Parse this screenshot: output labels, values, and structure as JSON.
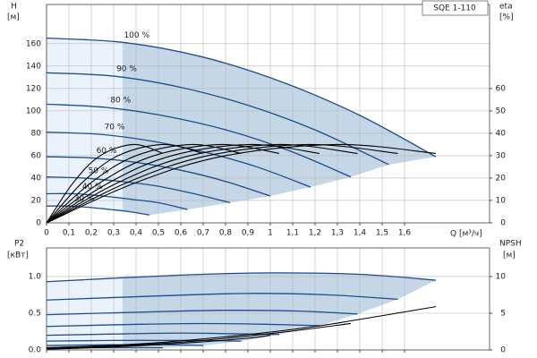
{
  "chart_data": [
    {
      "type": "line",
      "title": "SQE 1-110",
      "x_label": "Q [м³/ч]",
      "y_label": "H",
      "y_unit": "[м]",
      "y2_label": "eta",
      "y2_unit": "[%]",
      "xlim": [
        0,
        1.98
      ],
      "xticks": [
        0,
        {
          "value": 0.1,
          "label": "0,1"
        },
        {
          "value": 0.2,
          "label": "0,2"
        },
        {
          "value": 0.3,
          "label": "0,3"
        },
        {
          "value": 0.4,
          "label": "0,4"
        },
        {
          "value": 0.5,
          "label": "0,5"
        },
        {
          "value": 0.6,
          "label": "0,6"
        },
        {
          "value": 0.7,
          "label": "0,7"
        },
        {
          "value": 0.8,
          "label": "0,8"
        },
        {
          "value": 0.9,
          "label": "0,9"
        },
        1,
        {
          "value": 1.1,
          "label": "1,1"
        },
        {
          "value": 1.2,
          "label": "1,2"
        },
        {
          "value": 1.3,
          "label": "1,3"
        },
        {
          "value": 1.4,
          "label": "1,4"
        },
        {
          "value": 1.5,
          "label": "1,5"
        },
        {
          "value": 1.6,
          "label": "1,6"
        }
      ],
      "ylim": [
        0,
        195
      ],
      "yticks": [
        0,
        20,
        40,
        60,
        80,
        100,
        120,
        140,
        160
      ],
      "y2lim": [
        0,
        97.5
      ],
      "y2ticks": [
        0,
        10,
        20,
        30,
        40,
        50,
        60
      ],
      "grid": true,
      "series": [
        {
          "name": "100 %",
          "color": "#1f4e8c",
          "x": [
            0,
            0.35,
            0.7,
            1.05,
            1.4,
            1.74
          ],
          "values": [
            165,
            161,
            148,
            126,
            96,
            59
          ]
        },
        {
          "name": "90 %",
          "color": "#1f4e8c",
          "x": [
            0,
            0.3,
            0.6,
            0.9,
            1.2,
            1.53
          ],
          "values": [
            134,
            131,
            121,
            105,
            83,
            52
          ]
        },
        {
          "name": "80 %",
          "color": "#1f4e8c",
          "x": [
            0,
            0.27,
            0.54,
            0.82,
            1.09,
            1.36
          ],
          "values": [
            106,
            103,
            95,
            82,
            64,
            41
          ]
        },
        {
          "name": "70 %",
          "color": "#1f4e8c",
          "x": [
            0,
            0.24,
            0.47,
            0.71,
            0.94,
            1.18
          ],
          "values": [
            81,
            79,
            73,
            63,
            50,
            32
          ]
        },
        {
          "name": "60 %",
          "color": "#1f4e8c",
          "x": [
            0,
            0.2,
            0.4,
            0.6,
            0.8,
            1.0
          ],
          "values": [
            59,
            58,
            54,
            47,
            37,
            24
          ]
        },
        {
          "name": "50 %",
          "color": "#1f4e8c",
          "x": [
            0,
            0.16,
            0.33,
            0.49,
            0.66,
            0.82
          ],
          "values": [
            41,
            40,
            37,
            33,
            26,
            18
          ]
        },
        {
          "name": "40 %",
          "color": "#1f4e8c",
          "x": [
            0,
            0.13,
            0.25,
            0.38,
            0.5,
            0.63
          ],
          "values": [
            26,
            26,
            24,
            21,
            18,
            12
          ]
        },
        {
          "name": "30 %",
          "color": "#1f4e8c",
          "x": [
            0,
            0.09,
            0.18,
            0.28,
            0.37,
            0.46
          ],
          "values": [
            15,
            15,
            14,
            12,
            10,
            7
          ]
        },
        {
          "color": "#000000",
          "axis": "y2",
          "x": [
            0,
            0.4,
            0.8,
            1.3,
            1.74
          ],
          "values": [
            0,
            18,
            30,
            35,
            31
          ]
        },
        {
          "color": "#000000",
          "axis": "y2",
          "x": [
            0,
            0.36,
            0.72,
            1.17,
            1.57
          ],
          "values": [
            0,
            18,
            30,
            35,
            31
          ]
        },
        {
          "color": "#000000",
          "axis": "y2",
          "x": [
            0,
            0.32,
            0.64,
            1.04,
            1.39
          ],
          "values": [
            0,
            18,
            30,
            35,
            31
          ]
        },
        {
          "color": "#000000",
          "axis": "y2",
          "x": [
            0,
            0.28,
            0.56,
            0.91,
            1.22
          ],
          "values": [
            0,
            18,
            30,
            35,
            31
          ]
        },
        {
          "color": "#000000",
          "axis": "y2",
          "x": [
            0,
            0.24,
            0.48,
            0.78,
            1.04
          ],
          "values": [
            0,
            18,
            30,
            35,
            31
          ]
        },
        {
          "color": "#000000",
          "axis": "y2",
          "x": [
            0,
            0.2,
            0.4,
            0.65,
            0.87
          ],
          "values": [
            0,
            18,
            30,
            35,
            31
          ]
        },
        {
          "color": "#000000",
          "axis": "y2",
          "x": [
            0,
            0.16,
            0.32,
            0.52,
            0.7
          ],
          "values": [
            0,
            18,
            30,
            35,
            31
          ]
        },
        {
          "color": "#000000",
          "axis": "y2",
          "x": [
            0,
            0.12,
            0.24,
            0.39,
            0.52
          ],
          "values": [
            0,
            18,
            30,
            35,
            31
          ]
        }
      ]
    },
    {
      "type": "line",
      "y_label": "P2",
      "y_unit": "[кВт]",
      "y2_label": "NPSH",
      "y2_unit": "[м]",
      "xlim": [
        0,
        1.98
      ],
      "xticks": [
        0,
        0.1,
        0.2,
        0.3,
        0.4,
        0.5,
        0.6,
        0.7,
        0.8,
        0.9,
        1,
        1.1,
        1.2,
        1.3,
        1.4,
        1.5,
        1.6
      ],
      "ylim": [
        0,
        1.39
      ],
      "yticks": [
        {
          "value": 0,
          "label": "0.0"
        },
        0.5,
        {
          "value": 1,
          "label": "1.0"
        }
      ],
      "y2lim": [
        0,
        13.9
      ],
      "y2ticks": [
        0,
        5,
        10
      ],
      "grid": true,
      "series": [
        {
          "color": "#1f4e8c",
          "x": [
            0,
            0.6,
            1.0,
            1.4,
            1.74
          ],
          "values": [
            0.93,
            1.02,
            1.05,
            1.03,
            0.95
          ]
        },
        {
          "color": "#1f4e8c",
          "x": [
            0,
            0.54,
            0.9,
            1.26,
            1.57
          ],
          "values": [
            0.68,
            0.74,
            0.77,
            0.75,
            0.69
          ]
        },
        {
          "color": "#1f4e8c",
          "x": [
            0,
            0.48,
            0.8,
            1.12,
            1.39
          ],
          "values": [
            0.48,
            0.52,
            0.54,
            0.53,
            0.49
          ]
        },
        {
          "color": "#1f4e8c",
          "x": [
            0,
            0.42,
            0.7,
            0.98,
            1.22
          ],
          "values": [
            0.32,
            0.35,
            0.36,
            0.35,
            0.33
          ]
        },
        {
          "color": "#1f4e8c",
          "x": [
            0,
            0.36,
            0.6,
            0.84,
            1.04
          ],
          "values": [
            0.2,
            0.22,
            0.23,
            0.22,
            0.21
          ]
        },
        {
          "color": "#1f4e8c",
          "x": [
            0,
            0.3,
            0.5,
            0.7,
            0.87
          ],
          "values": [
            0.12,
            0.13,
            0.13,
            0.13,
            0.12
          ]
        },
        {
          "color": "#1f4e8c",
          "x": [
            0,
            0.24,
            0.4,
            0.56,
            0.7
          ],
          "values": [
            0.06,
            0.07,
            0.07,
            0.07,
            0.06
          ]
        },
        {
          "color": "#1f4e8c",
          "x": [
            0,
            0.18,
            0.3,
            0.42,
            0.52
          ],
          "values": [
            0.03,
            0.03,
            0.03,
            0.03,
            0.03
          ]
        },
        {
          "color": "#000000",
          "axis": "y2",
          "x": [
            0,
            0.4,
            0.8,
            1.2,
            1.74
          ],
          "values": [
            0.3,
            0.8,
            1.8,
            3.2,
            5.9
          ]
        },
        {
          "color": "#000000",
          "axis": "y2",
          "x": [
            0,
            0.35,
            0.7,
            1.05,
            1.36
          ],
          "values": [
            0.2,
            0.6,
            1.3,
            2.4,
            3.6
          ]
        },
        {
          "color": "#000000",
          "axis": "y2",
          "x": [
            0,
            0.3,
            0.6,
            0.9,
            1.0
          ],
          "values": [
            0.1,
            0.4,
            0.9,
            1.6,
            2.0
          ]
        }
      ]
    }
  ]
}
